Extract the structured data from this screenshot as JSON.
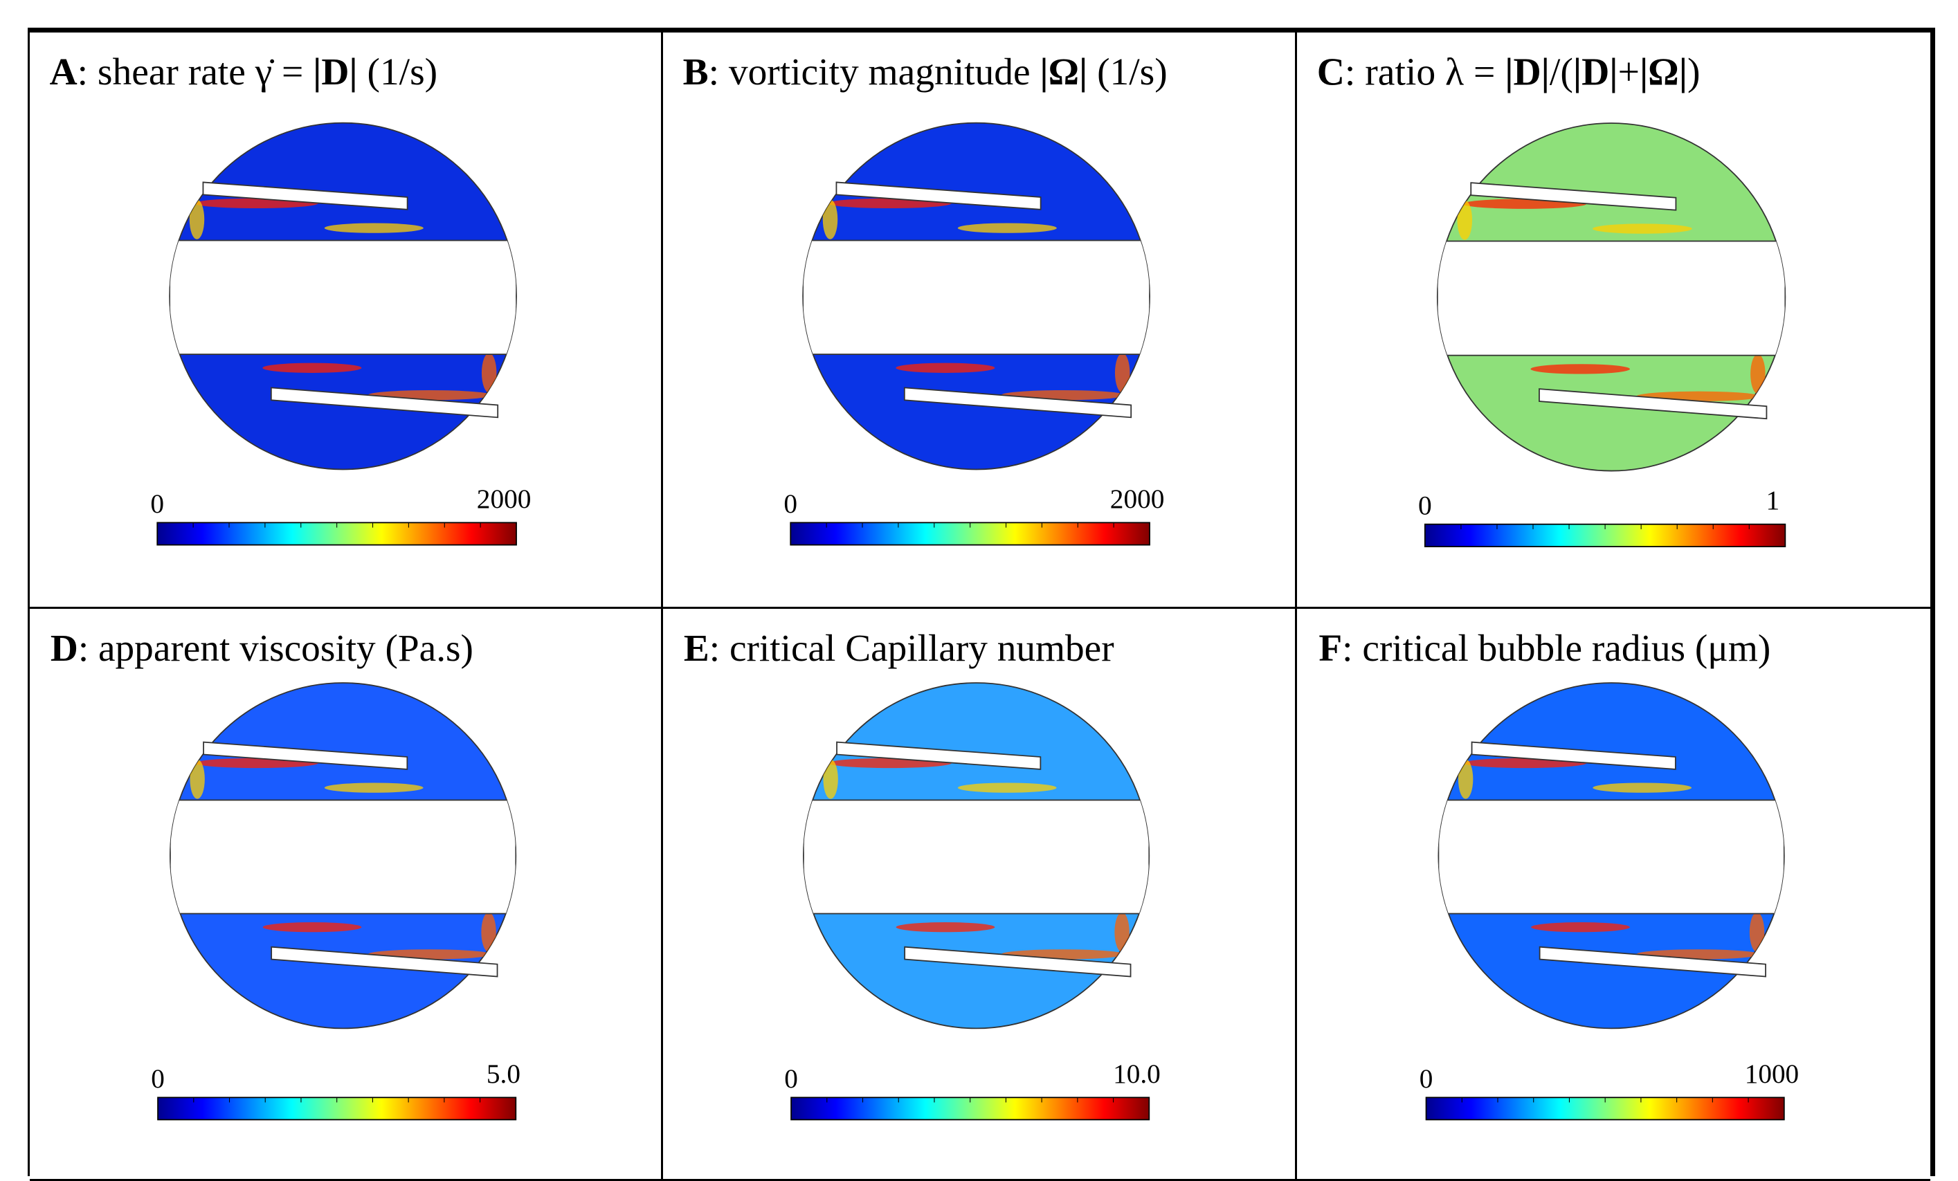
{
  "panels": [
    {
      "title": [
        {
          "text": "A",
          "bold": true
        },
        {
          "text": ": shear rate γ̇ = ",
          "bold": false
        },
        {
          "text": "|D|",
          "bold": true
        },
        {
          "text": " (1/s)",
          "bold": false
        }
      ],
      "colorbar": {
        "min": "0",
        "max": "2000"
      },
      "field_color": "#0a2ee0"
    },
    {
      "title": [
        {
          "text": "B",
          "bold": true
        },
        {
          "text": ": vorticity magnitude ",
          "bold": false
        },
        {
          "text": "|Ω|",
          "bold": true
        },
        {
          "text": " (1/s)",
          "bold": false
        }
      ],
      "colorbar": {
        "min": "0",
        "max": "2000"
      },
      "field_color": "#0a34e6"
    },
    {
      "title": [
        {
          "text": "C",
          "bold": true
        },
        {
          "text": ": ratio λ = ",
          "bold": false
        },
        {
          "text": "|D|",
          "bold": true
        },
        {
          "text": "/(",
          "bold": false
        },
        {
          "text": "|D|",
          "bold": true
        },
        {
          "text": "+",
          "bold": false
        },
        {
          "text": "|Ω|",
          "bold": true
        },
        {
          "text": ")",
          "bold": false
        }
      ],
      "colorbar": {
        "min": "0",
        "max": "1"
      },
      "field_color": "#8ee07a"
    },
    {
      "title": [
        {
          "text": "D",
          "bold": true
        },
        {
          "text": ": apparent viscosity (Pa.s)",
          "bold": false
        }
      ],
      "colorbar": {
        "min": "0",
        "max": "5.0"
      },
      "field_color": "#1a5cff"
    },
    {
      "title": [
        {
          "text": "E",
          "bold": true
        },
        {
          "text": ": critical Capillary number",
          "bold": false
        }
      ],
      "colorbar": {
        "min": "0",
        "max": "10.0"
      },
      "field_color": "#2ea2ff"
    },
    {
      "title": [
        {
          "text": "F",
          "bold": true
        },
        {
          "text": ": critical bubble radius (μm)",
          "bold": false
        }
      ],
      "colorbar": {
        "min": "0",
        "max": "1000"
      },
      "field_color": "#1266ff"
    }
  ]
}
